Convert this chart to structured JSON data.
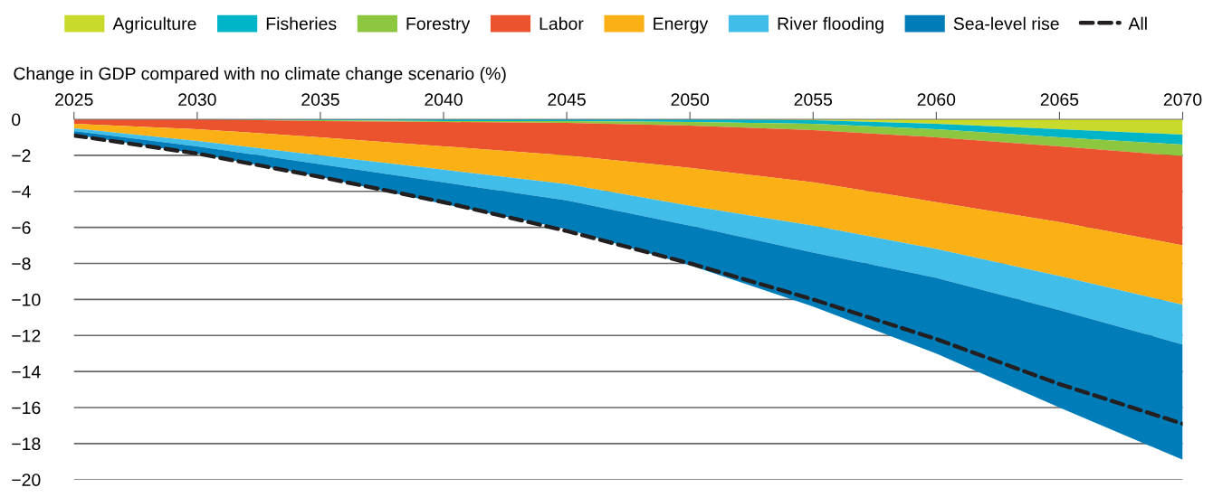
{
  "chart_data": {
    "type": "area",
    "stacked": true,
    "ylabel": "Change in GDP compared with no climate change scenario (%)",
    "x": [
      2025,
      2030,
      2035,
      2040,
      2045,
      2050,
      2055,
      2060,
      2065,
      2070
    ],
    "series": [
      {
        "name": "Agriculture",
        "color": "#c8da2b",
        "values": [
          0,
          0,
          0,
          0,
          0,
          0,
          -0.05,
          -0.25,
          -0.55,
          -0.85
        ]
      },
      {
        "name": "Fisheries",
        "color": "#00b5c8",
        "values": [
          0,
          0,
          -0.05,
          -0.1,
          -0.1,
          -0.15,
          -0.2,
          -0.3,
          -0.45,
          -0.55
        ]
      },
      {
        "name": "Forestry",
        "color": "#8dc63f",
        "values": [
          0,
          0,
          -0.05,
          -0.05,
          -0.1,
          -0.2,
          -0.35,
          -0.45,
          -0.5,
          -0.65
        ]
      },
      {
        "name": "Labor",
        "color": "#ea532d",
        "values": [
          -0.25,
          -0.55,
          -0.9,
          -1.35,
          -1.8,
          -2.35,
          -2.9,
          -3.6,
          -4.2,
          -4.95
        ]
      },
      {
        "name": "Energy",
        "color": "#fbb116",
        "values": [
          -0.25,
          -0.65,
          -1.0,
          -1.3,
          -1.6,
          -2.1,
          -2.4,
          -2.6,
          -3.0,
          -3.3
        ]
      },
      {
        "name": "River flooding",
        "color": "#41bde9",
        "values": [
          -0.15,
          -0.3,
          -0.5,
          -0.7,
          -0.9,
          -1.1,
          -1.5,
          -1.6,
          -1.9,
          -2.2
        ]
      },
      {
        "name": "Sea-level rise",
        "color": "#007db8",
        "values": [
          -0.2,
          -0.4,
          -0.7,
          -1.2,
          -1.6,
          -2.2,
          -3.0,
          -4.2,
          -5.4,
          -6.4
        ]
      },
      {
        "name": "All",
        "type": "line",
        "color": "#231f20",
        "line_style": "dashed",
        "values": [
          -0.9,
          -1.9,
          -3.2,
          -4.6,
          -6.2,
          -8.0,
          -10.0,
          -12.2,
          -14.7,
          -16.9
        ]
      }
    ],
    "xlim": [
      2025,
      2070
    ],
    "xticks": [
      2025,
      2030,
      2035,
      2040,
      2045,
      2050,
      2055,
      2060,
      2065,
      2070
    ],
    "ylim": [
      -20,
      0
    ],
    "yticks": [
      0,
      -2,
      -4,
      -6,
      -8,
      -10,
      -12,
      -14,
      -16,
      -18,
      -20
    ],
    "grid": "y",
    "legend": "top"
  }
}
